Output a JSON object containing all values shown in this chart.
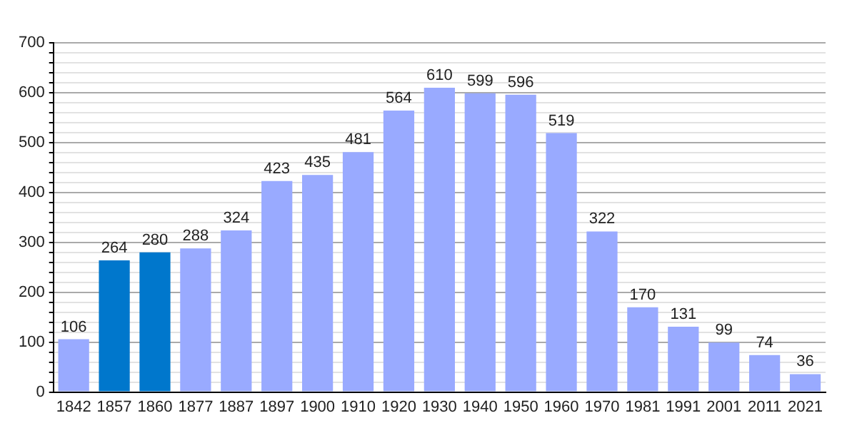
{
  "chart_data": {
    "type": "bar",
    "categories": [
      "1842",
      "1857",
      "1860",
      "1877",
      "1887",
      "1897",
      "1900",
      "1910",
      "1920",
      "1930",
      "1940",
      "1950",
      "1960",
      "1970",
      "1981",
      "1991",
      "2001",
      "2011",
      "2021"
    ],
    "values": [
      106,
      264,
      280,
      288,
      324,
      423,
      435,
      481,
      564,
      610,
      599,
      596,
      519,
      322,
      170,
      131,
      99,
      74,
      36
    ],
    "colors": [
      "#99aaff",
      "#0077cc",
      "#0077cc",
      "#99aaff",
      "#99aaff",
      "#99aaff",
      "#99aaff",
      "#99aaff",
      "#99aaff",
      "#99aaff",
      "#99aaff",
      "#99aaff",
      "#99aaff",
      "#99aaff",
      "#99aaff",
      "#99aaff",
      "#99aaff",
      "#99aaff",
      "#99aaff"
    ],
    "ylim": [
      0,
      700
    ],
    "yticks": [
      0,
      {
        "value": 20,
        "label": null
      },
      {
        "value": 40,
        "label": null
      },
      {
        "value": 60,
        "label": null
      },
      {
        "value": 80,
        "label": null
      },
      100,
      {
        "value": 120,
        "label": null
      },
      {
        "value": 140,
        "label": null
      },
      {
        "value": 160,
        "label": null
      },
      {
        "value": 180,
        "label": null
      },
      200,
      {
        "value": 220,
        "label": null
      },
      {
        "value": 240,
        "label": null
      },
      {
        "value": 260,
        "label": null
      },
      {
        "value": 280,
        "label": null
      },
      300,
      {
        "value": 320,
        "label": null
      },
      {
        "value": 340,
        "label": null
      },
      {
        "value": 360,
        "label": null
      },
      {
        "value": 380,
        "label": null
      },
      400,
      {
        "value": 420,
        "label": null
      },
      {
        "value": 440,
        "label": null
      },
      {
        "value": 460,
        "label": null
      },
      {
        "value": 480,
        "label": null
      },
      500,
      {
        "value": 520,
        "label": null
      },
      {
        "value": 540,
        "label": null
      },
      {
        "value": 560,
        "label": null
      },
      {
        "value": 580,
        "label": null
      },
      600,
      {
        "value": 620,
        "label": null
      },
      {
        "value": 640,
        "label": null
      },
      {
        "value": 660,
        "label": null
      },
      {
        "value": 680,
        "label": null
      },
      700
    ],
    "grid": true,
    "data_labels": true
  }
}
